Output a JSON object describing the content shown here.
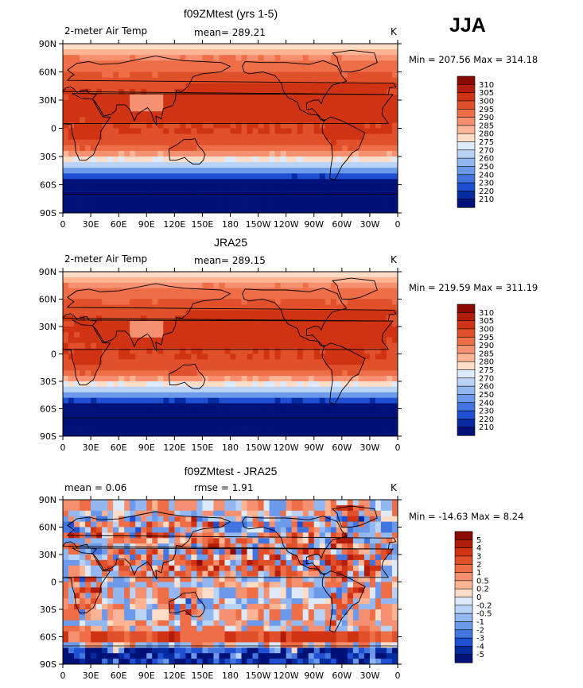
{
  "season_label": "JJA",
  "panels": [
    {
      "title": "f09ZMtest (yrs 1-5)",
      "left_label": "2-meter Air Temp",
      "mean_text": "mean= 289.21",
      "units": "K",
      "minmax_text": "Min = 207.56 Max = 314.18",
      "type": "contour-map",
      "field": "full",
      "legend_levels": [
        "310",
        "305",
        "300",
        "295",
        "290",
        "285",
        "280",
        "275",
        "270",
        "260",
        "250",
        "240",
        "230",
        "220",
        "210"
      ],
      "legend_colors": [
        "#8b0a00",
        "#b21c0b",
        "#d03314",
        "#e0502a",
        "#ee6e48",
        "#f59170",
        "#fbb595",
        "#fdddc8",
        "#dceafb",
        "#b9d3f7",
        "#93b7f1",
        "#6d99ea",
        "#4275df",
        "#1f4fd2",
        "#062ba0",
        "#001177"
      ]
    },
    {
      "title": "JRA25",
      "left_label": "2-meter Air Temp",
      "mean_text": "mean= 289.15",
      "units": "K",
      "minmax_text": "Min = 219.59 Max = 311.19",
      "type": "contour-map",
      "field": "full",
      "legend_levels": [
        "310",
        "305",
        "300",
        "295",
        "290",
        "285",
        "280",
        "275",
        "270",
        "260",
        "250",
        "240",
        "230",
        "220",
        "210"
      ],
      "legend_colors": [
        "#8b0a00",
        "#b21c0b",
        "#d03314",
        "#e0502a",
        "#ee6e48",
        "#f59170",
        "#fbb595",
        "#fdddc8",
        "#dceafb",
        "#b9d3f7",
        "#93b7f1",
        "#6d99ea",
        "#4275df",
        "#1f4fd2",
        "#062ba0",
        "#001177"
      ]
    },
    {
      "title": "f09ZMtest - JRA25",
      "left_label": "mean =    0.06",
      "mean_text": "rmse =    1.91",
      "units": "K",
      "minmax_text": "Min = -14.63 Max =   8.24",
      "type": "contour-map",
      "field": "diff",
      "legend_levels": [
        "5",
        "4",
        "3",
        "2",
        "1",
        "0.5",
        "0.2",
        "0",
        "-0.2",
        "-0.5",
        "-1",
        "-2",
        "-3",
        "-4",
        "-5"
      ],
      "legend_colors": [
        "#8b0a00",
        "#b21c0b",
        "#d03314",
        "#e0502a",
        "#ee6e48",
        "#f59170",
        "#fbb595",
        "#fdddc8",
        "#dceafb",
        "#b9d3f7",
        "#93b7f1",
        "#6d99ea",
        "#4275df",
        "#1f4fd2",
        "#062ba0",
        "#001177"
      ]
    }
  ],
  "chart_data": [
    {
      "type": "heatmap",
      "title": "f09ZMtest (yrs 1-5)",
      "xlabel": "",
      "ylabel": "",
      "x_ticks": [
        "0",
        "30E",
        "60E",
        "90E",
        "120E",
        "150E",
        "180",
        "150W",
        "120W",
        "90W",
        "60W",
        "30W",
        "0"
      ],
      "y_ticks": [
        "90N",
        "60N",
        "30N",
        "0",
        "30S",
        "60S",
        "90S"
      ],
      "mean": 289.21,
      "min": 207.56,
      "max": 314.18,
      "units": "K"
    },
    {
      "type": "heatmap",
      "title": "JRA25",
      "xlabel": "",
      "ylabel": "",
      "x_ticks": [
        "0",
        "30E",
        "60E",
        "90E",
        "120E",
        "150E",
        "180",
        "150W",
        "120W",
        "90W",
        "60W",
        "30W",
        "0"
      ],
      "y_ticks": [
        "90N",
        "60N",
        "30N",
        "0",
        "30S",
        "60S",
        "90S"
      ],
      "mean": 289.15,
      "min": 219.59,
      "max": 311.19,
      "units": "K"
    },
    {
      "type": "heatmap",
      "title": "f09ZMtest - JRA25",
      "xlabel": "",
      "ylabel": "",
      "x_ticks": [
        "0",
        "30E",
        "60E",
        "90E",
        "120E",
        "150E",
        "180",
        "150W",
        "120W",
        "90W",
        "60W",
        "30W",
        "0"
      ],
      "y_ticks": [
        "90N",
        "60N",
        "30N",
        "0",
        "30S",
        "60S",
        "90S"
      ],
      "mean": 0.06,
      "rmse": 1.91,
      "min": -14.63,
      "max": 8.24,
      "units": "K"
    }
  ]
}
